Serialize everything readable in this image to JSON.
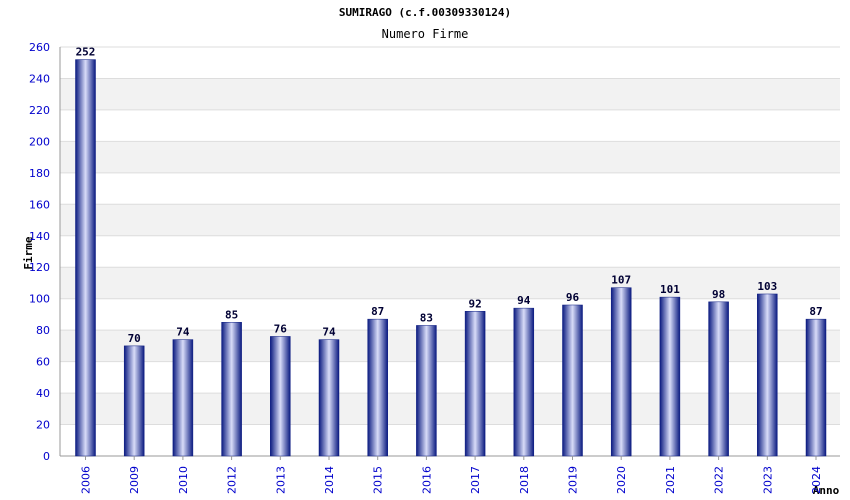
{
  "chart_data": {
    "type": "bar",
    "title": "SUMIRAGO (c.f.00309330124)",
    "subtitle": "Numero Firme",
    "xlabel": "Anno",
    "ylabel": "Firme",
    "ylim": [
      0,
      260
    ],
    "yticks": [
      0,
      20,
      40,
      60,
      80,
      100,
      120,
      140,
      160,
      180,
      200,
      220,
      240,
      260
    ],
    "grid": true,
    "categories": [
      "2006",
      "2009",
      "2010",
      "2012",
      "2013",
      "2014",
      "2015",
      "2016",
      "2017",
      "2018",
      "2019",
      "2020",
      "2021",
      "2022",
      "2023",
      "2024"
    ],
    "values": [
      252,
      70,
      74,
      85,
      76,
      74,
      87,
      83,
      92,
      94,
      96,
      107,
      101,
      98,
      103,
      87
    ],
    "colors": {
      "bar_dark": "#0a1a80",
      "bar_light": "#d8dcf8",
      "axis_text": "#0000cc",
      "band": "#f2f2f2",
      "grid": "#dddddd"
    }
  }
}
